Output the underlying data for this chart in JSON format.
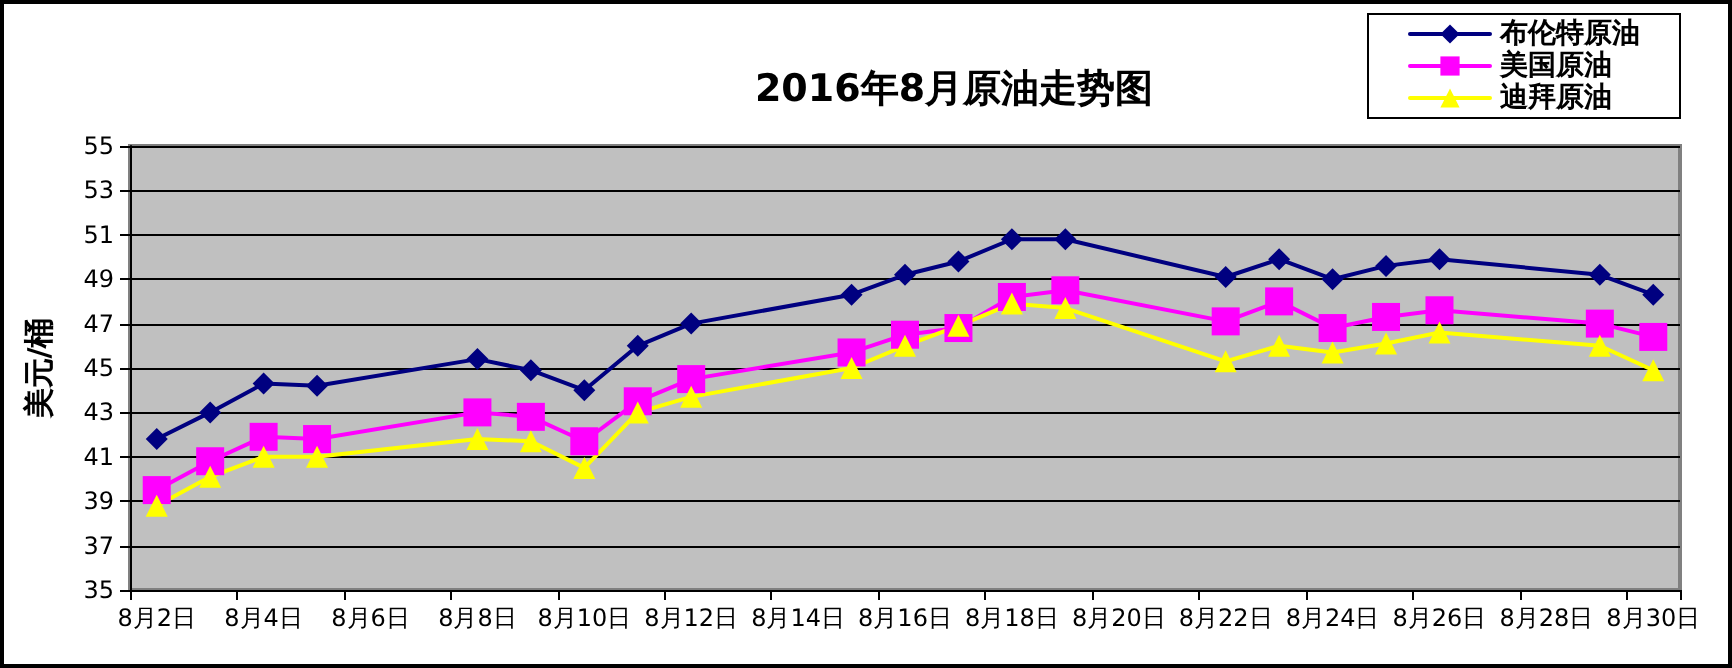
{
  "chart_data": {
    "type": "line",
    "title": "2016年8月原油走势图",
    "ylabel": "美元/桶",
    "categories": [
      "8月2日",
      null,
      "8月4日",
      null,
      "8月6日",
      null,
      "8月8日",
      null,
      "8月10日",
      null,
      "8月12日",
      null,
      "8月14日",
      null,
      "8月16日",
      null,
      "8月18日",
      null,
      "8月20日",
      null,
      "8月22日",
      null,
      "8月24日",
      null,
      "8月26日",
      null,
      "8月28日",
      null,
      "8月30日"
    ],
    "series": [
      {
        "name": "布伦特原油",
        "color": "#000080",
        "marker": "diamond",
        "values": [
          41.8,
          43.0,
          44.3,
          44.2,
          null,
          null,
          45.4,
          44.9,
          44.0,
          46.0,
          47.0,
          null,
          null,
          48.3,
          49.2,
          49.8,
          50.8,
          50.8,
          null,
          null,
          49.1,
          49.9,
          49.0,
          49.6,
          49.9,
          null,
          null,
          49.2,
          48.3
        ]
      },
      {
        "name": "美国原油",
        "color": "#ff00ff",
        "marker": "square",
        "values": [
          39.5,
          40.8,
          41.9,
          41.8,
          null,
          null,
          43.0,
          42.8,
          41.7,
          43.5,
          44.5,
          null,
          null,
          45.7,
          46.5,
          46.8,
          48.2,
          48.5,
          null,
          null,
          47.1,
          48.0,
          46.8,
          47.3,
          47.6,
          null,
          null,
          47.0,
          46.4
        ]
      },
      {
        "name": "迪拜原油",
        "color": "#ffff00",
        "marker": "triangle",
        "values": [
          38.8,
          40.1,
          41.0,
          41.0,
          null,
          null,
          41.8,
          41.7,
          40.5,
          43.0,
          43.7,
          null,
          null,
          45.0,
          46.0,
          46.9,
          47.9,
          47.7,
          null,
          null,
          45.3,
          46.0,
          45.7,
          46.1,
          46.6,
          null,
          null,
          46.0,
          44.9
        ]
      }
    ],
    "ylim": [
      35,
      55
    ],
    "yticks": [
      35,
      37,
      39,
      41,
      43,
      45,
      47,
      49,
      51,
      53,
      55
    ],
    "grid": "y",
    "legend": "top right",
    "line_style": "solid"
  }
}
